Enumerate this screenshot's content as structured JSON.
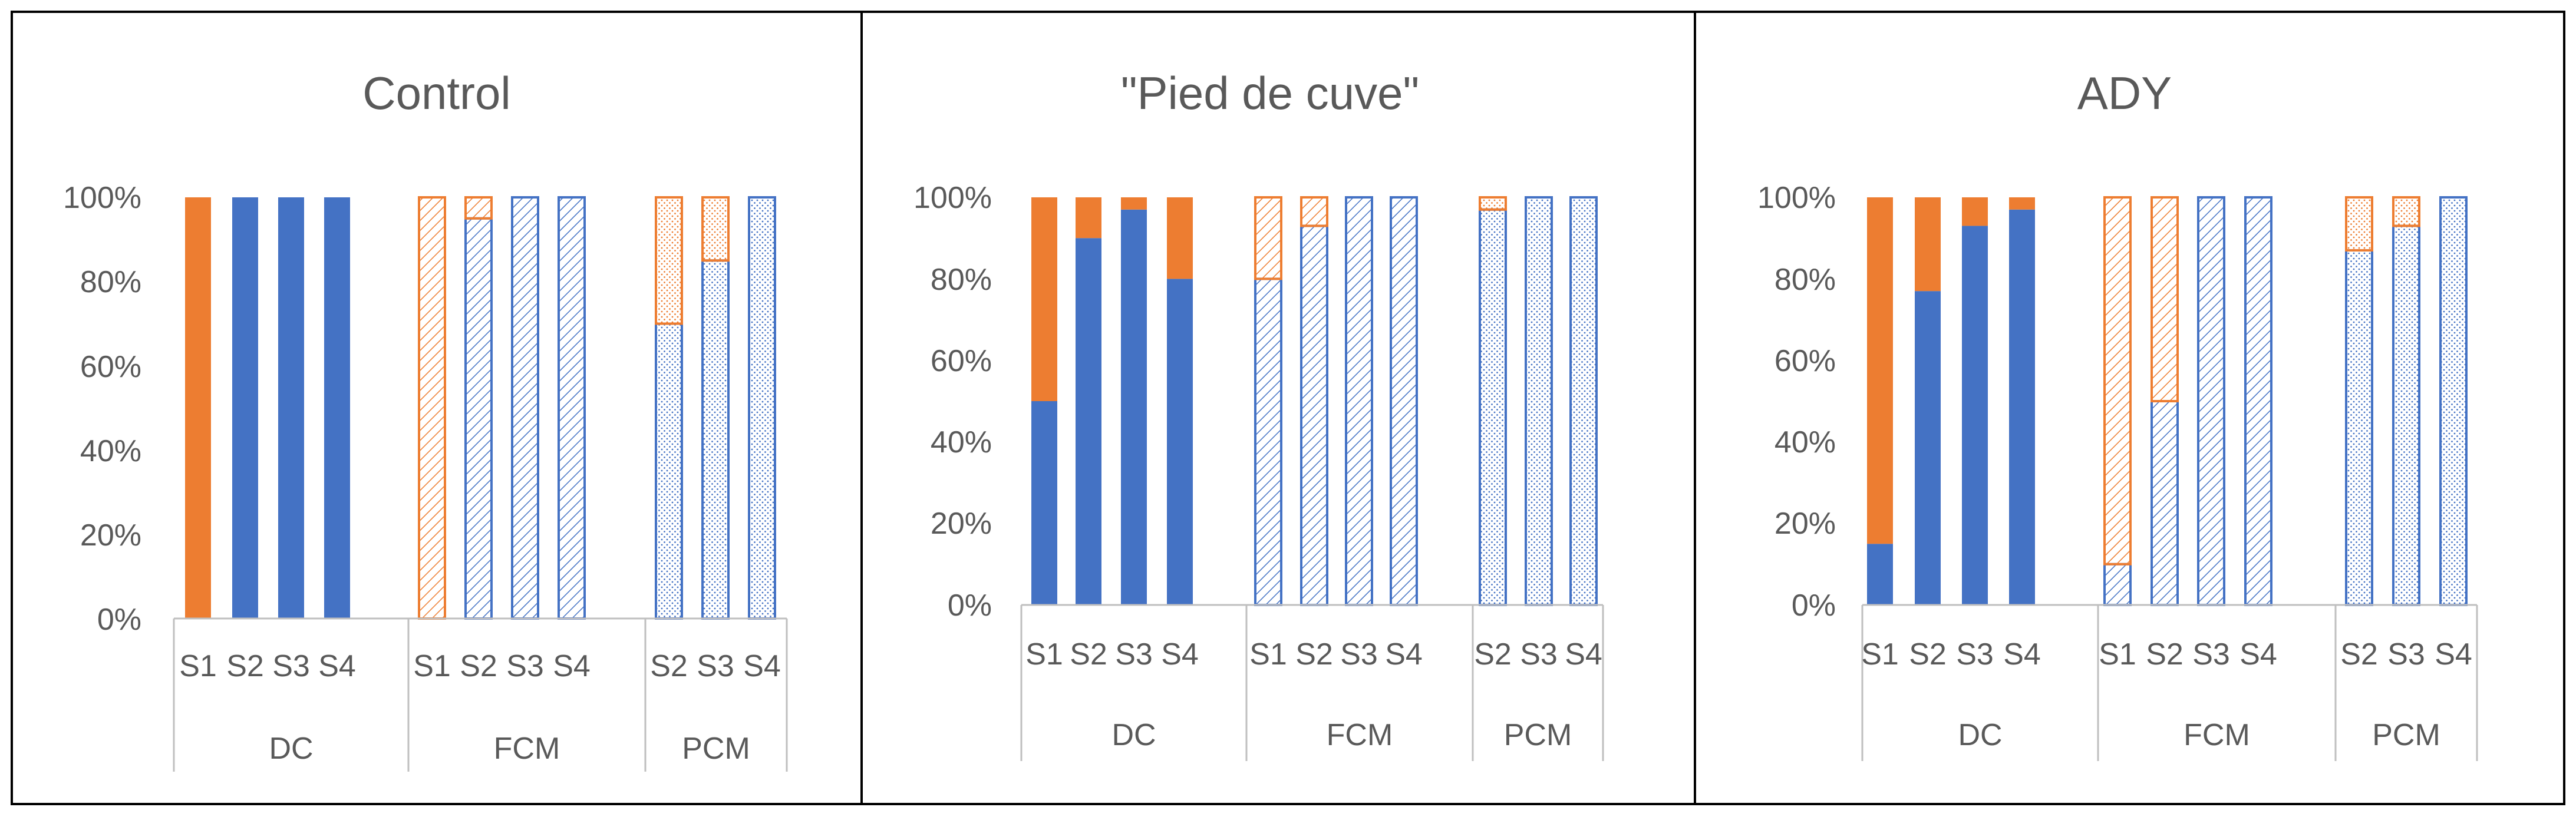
{
  "colors": {
    "blue": "#4472c4",
    "orange": "#ed7d31"
  },
  "chart_data": [
    {
      "type": "bar",
      "stacked": "100%",
      "title": "Control",
      "ylim": [
        0,
        100
      ],
      "y_ticks": [
        "0%",
        "20%",
        "40%",
        "60%",
        "80%",
        "100%"
      ],
      "groups": [
        {
          "name": "DC",
          "fill": "solid",
          "bars": [
            {
              "label": "S1",
              "blue": 0,
              "orange": 100
            },
            {
              "label": "S2",
              "blue": 100,
              "orange": 0
            },
            {
              "label": "S3",
              "blue": 100,
              "orange": 0
            },
            {
              "label": "S4",
              "blue": 100,
              "orange": 0
            }
          ]
        },
        {
          "name": "FCM",
          "fill": "hatch",
          "bars": [
            {
              "label": "S1",
              "blue": 0,
              "orange": 100
            },
            {
              "label": "S2",
              "blue": 95,
              "orange": 5
            },
            {
              "label": "S3",
              "blue": 100,
              "orange": 0
            },
            {
              "label": "S4",
              "blue": 100,
              "orange": 0
            }
          ]
        },
        {
          "name": "PCM",
          "fill": "dotted",
          "bars": [
            {
              "label": "S2",
              "blue": 70,
              "orange": 30
            },
            {
              "label": "S3",
              "blue": 85,
              "orange": 15
            },
            {
              "label": "S4",
              "blue": 100,
              "orange": 0
            }
          ]
        }
      ]
    },
    {
      "type": "bar",
      "stacked": "100%",
      "title": "\"Pied de cuve\"",
      "ylim": [
        0,
        100
      ],
      "y_ticks": [
        "0%",
        "20%",
        "40%",
        "60%",
        "80%",
        "100%"
      ],
      "groups": [
        {
          "name": "DC",
          "fill": "solid",
          "bars": [
            {
              "label": "S1",
              "blue": 50,
              "orange": 50
            },
            {
              "label": "S2",
              "blue": 90,
              "orange": 10
            },
            {
              "label": "S3",
              "blue": 97,
              "orange": 3
            },
            {
              "label": "S4",
              "blue": 80,
              "orange": 20
            }
          ]
        },
        {
          "name": "FCM",
          "fill": "hatch",
          "bars": [
            {
              "label": "S1",
              "blue": 80,
              "orange": 20
            },
            {
              "label": "S2",
              "blue": 93,
              "orange": 7
            },
            {
              "label": "S3",
              "blue": 100,
              "orange": 0
            },
            {
              "label": "S4",
              "blue": 100,
              "orange": 0
            }
          ]
        },
        {
          "name": "PCM",
          "fill": "dotted",
          "bars": [
            {
              "label": "S2",
              "blue": 97,
              "orange": 3
            },
            {
              "label": "S3",
              "blue": 100,
              "orange": 0
            },
            {
              "label": "S4",
              "blue": 100,
              "orange": 0
            }
          ]
        }
      ]
    },
    {
      "type": "bar",
      "stacked": "100%",
      "title": "ADY",
      "ylim": [
        0,
        100
      ],
      "y_ticks": [
        "0%",
        "20%",
        "40%",
        "60%",
        "80%",
        "100%"
      ],
      "groups": [
        {
          "name": "DC",
          "fill": "solid",
          "bars": [
            {
              "label": "S1",
              "blue": 15,
              "orange": 85
            },
            {
              "label": "S2",
              "blue": 77,
              "orange": 23
            },
            {
              "label": "S3",
              "blue": 93,
              "orange": 7
            },
            {
              "label": "S4",
              "blue": 97,
              "orange": 3
            }
          ]
        },
        {
          "name": "FCM",
          "fill": "hatch",
          "bars": [
            {
              "label": "S1",
              "blue": 10,
              "orange": 90
            },
            {
              "label": "S2",
              "blue": 50,
              "orange": 50
            },
            {
              "label": "S3",
              "blue": 100,
              "orange": 0
            },
            {
              "label": "S4",
              "blue": 100,
              "orange": 0
            }
          ]
        },
        {
          "name": "PCM",
          "fill": "dotted",
          "bars": [
            {
              "label": "S2",
              "blue": 87,
              "orange": 13
            },
            {
              "label": "S3",
              "blue": 93,
              "orange": 7
            },
            {
              "label": "S4",
              "blue": 100,
              "orange": 0
            }
          ]
        }
      ]
    }
  ]
}
